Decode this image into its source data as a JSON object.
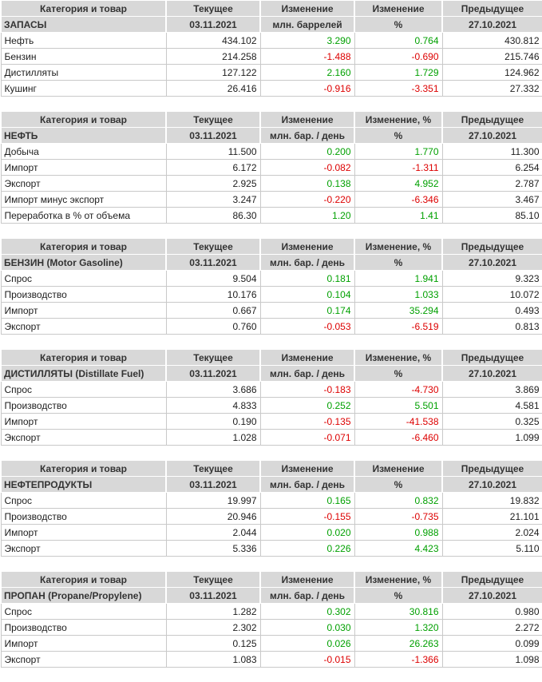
{
  "colors": {
    "positive": "#00a000",
    "negative": "#dd0000",
    "header_bg": "#d8d8d8",
    "grid_border": "#c9c9c9",
    "header_text": "#333333",
    "text": "#1d1d1d"
  },
  "tables": [
    {
      "name": "stocks",
      "columns": {
        "category": "Категория и товар",
        "current": "Текущее",
        "change": "Изменение",
        "change_pct": "Изменение",
        "previous": "Предыдущее"
      },
      "section": {
        "title": "ЗАПАСЫ",
        "current_date": "03.11.2021",
        "units": "млн. баррелей",
        "pct_units": "%",
        "previous_date": "27.10.2021"
      },
      "rows": [
        {
          "label": "Нефть",
          "current": "434.102",
          "change": "3.290",
          "change_pct": "0.764",
          "previous": "430.812"
        },
        {
          "label": "Бензин",
          "current": "214.258",
          "change": "-1.488",
          "change_pct": "-0.690",
          "previous": "215.746"
        },
        {
          "label": "Дистилляты",
          "current": "127.122",
          "change": "2.160",
          "change_pct": "1.729",
          "previous": "124.962"
        },
        {
          "label": "Кушинг",
          "current": "26.416",
          "change": "-0.916",
          "change_pct": "-3.351",
          "previous": "27.332"
        }
      ]
    },
    {
      "name": "oil",
      "columns": {
        "category": "Категория и товар",
        "current": "Текущее",
        "change": "Изменение",
        "change_pct": "Изменение, %",
        "previous": "Предыдущее"
      },
      "section": {
        "title": "НЕФТЬ",
        "current_date": "03.11.2021",
        "units": "млн. бар. / день",
        "pct_units": "%",
        "previous_date": "27.10.2021"
      },
      "rows": [
        {
          "label": "Добыча",
          "current": "11.500",
          "change": "0.200",
          "change_pct": "1.770",
          "previous": "11.300"
        },
        {
          "label": "Импорт",
          "current": "6.172",
          "change": "-0.082",
          "change_pct": "-1.311",
          "previous": "6.254"
        },
        {
          "label": "Экспорт",
          "current": "2.925",
          "change": "0.138",
          "change_pct": "4.952",
          "previous": "2.787"
        },
        {
          "label": "Импорт минус экспорт",
          "current": "3.247",
          "change": "-0.220",
          "change_pct": "-6.346",
          "previous": "3.467"
        },
        {
          "label": "Переработка в % от объема",
          "current": "86.30",
          "change": "1.20",
          "change_pct": "1.41",
          "previous": "85.10"
        }
      ]
    },
    {
      "name": "gasoline",
      "columns": {
        "category": "Категория и товар",
        "current": "Текущее",
        "change": "Изменение",
        "change_pct": "Изменение, %",
        "previous": "Предыдущее"
      },
      "section": {
        "title": "БЕНЗИН (Motor Gasoline)",
        "current_date": "03.11.2021",
        "units": "млн. бар. / день",
        "pct_units": "%",
        "previous_date": "27.10.2021"
      },
      "rows": [
        {
          "label": "Спрос",
          "current": "9.504",
          "change": "0.181",
          "change_pct": "1.941",
          "previous": "9.323"
        },
        {
          "label": "Производство",
          "current": "10.176",
          "change": "0.104",
          "change_pct": "1.033",
          "previous": "10.072"
        },
        {
          "label": "Импорт",
          "current": "0.667",
          "change": "0.174",
          "change_pct": "35.294",
          "previous": "0.493"
        },
        {
          "label": "Экспорт",
          "current": "0.760",
          "change": "-0.053",
          "change_pct": "-6.519",
          "previous": "0.813"
        }
      ]
    },
    {
      "name": "distillate",
      "columns": {
        "category": "Категория и товар",
        "current": "Текущее",
        "change": "Изменение",
        "change_pct": "Изменение, %",
        "previous": "Предыдущее"
      },
      "section": {
        "title": "ДИСТИЛЛЯТЫ (Distillate Fuel)",
        "current_date": "03.11.2021",
        "units": "млн. бар. / день",
        "pct_units": "%",
        "previous_date": "27.10.2021"
      },
      "rows": [
        {
          "label": "Спрос",
          "current": "3.686",
          "change": "-0.183",
          "change_pct": "-4.730",
          "previous": "3.869"
        },
        {
          "label": "Производство",
          "current": "4.833",
          "change": "0.252",
          "change_pct": "5.501",
          "previous": "4.581"
        },
        {
          "label": "Импорт",
          "current": "0.190",
          "change": "-0.135",
          "change_pct": "-41.538",
          "previous": "0.325"
        },
        {
          "label": "Экспорт",
          "current": "1.028",
          "change": "-0.071",
          "change_pct": "-6.460",
          "previous": "1.099"
        }
      ]
    },
    {
      "name": "products",
      "columns": {
        "category": "Категория и товар",
        "current": "Текущее",
        "change": "Изменение",
        "change_pct": "Изменение",
        "previous": "Предыдущее"
      },
      "section": {
        "title": "НЕФТЕПРОДУКТЫ",
        "current_date": "03.11.2021",
        "units": "млн. бар. / день",
        "pct_units": "%",
        "previous_date": "27.10.2021"
      },
      "rows": [
        {
          "label": "Спрос",
          "current": "19.997",
          "change": "0.165",
          "change_pct": "0.832",
          "previous": "19.832"
        },
        {
          "label": "Производство",
          "current": "20.946",
          "change": "-0.155",
          "change_pct": "-0.735",
          "previous": "21.101"
        },
        {
          "label": "Импорт",
          "current": "2.044",
          "change": "0.020",
          "change_pct": "0.988",
          "previous": "2.024"
        },
        {
          "label": "Экспорт",
          "current": "5.336",
          "change": "0.226",
          "change_pct": "4.423",
          "previous": "5.110"
        }
      ]
    },
    {
      "name": "propane",
      "columns": {
        "category": "Категория и товар",
        "current": "Текущее",
        "change": "Изменение",
        "change_pct": "Изменение, %",
        "previous": "Предыдущее"
      },
      "section": {
        "title": "ПРОПАН (Propane/Propylene)",
        "current_date": "03.11.2021",
        "units": "млн. бар. / день",
        "pct_units": "%",
        "previous_date": "27.10.2021"
      },
      "rows": [
        {
          "label": "Спрос",
          "current": "1.282",
          "change": "0.302",
          "change_pct": "30.816",
          "previous": "0.980"
        },
        {
          "label": "Производство",
          "current": "2.302",
          "change": "0.030",
          "change_pct": "1.320",
          "previous": "2.272"
        },
        {
          "label": "Импорт",
          "current": "0.125",
          "change": "0.026",
          "change_pct": "26.263",
          "previous": "0.099"
        },
        {
          "label": "Экспорт",
          "current": "1.083",
          "change": "-0.015",
          "change_pct": "-1.366",
          "previous": "1.098"
        }
      ]
    }
  ]
}
